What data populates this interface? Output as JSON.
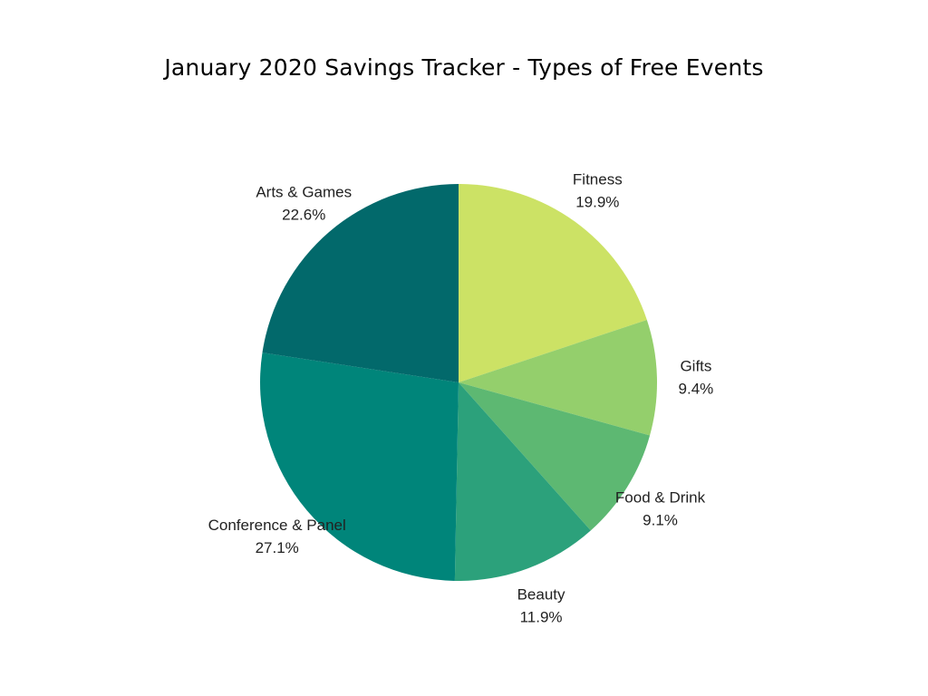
{
  "chart_data": {
    "type": "pie",
    "title": "January 2020 Savings Tracker - Types of Free Events",
    "slices": [
      {
        "label": "Fitness",
        "value": 19.9,
        "display": "19.9%",
        "color": "#cce265"
      },
      {
        "label": "Gifts",
        "value": 9.4,
        "display": "9.4%",
        "color": "#94cf6c"
      },
      {
        "label": "Food & Drink",
        "value": 9.1,
        "display": "9.1%",
        "color": "#5db872"
      },
      {
        "label": "Beauty",
        "value": 11.9,
        "display": "11.9%",
        "color": "#2ca17b"
      },
      {
        "label": "Conference & Panel",
        "value": 27.1,
        "display": "27.1%",
        "color": "#00857a"
      },
      {
        "label": "Arts & Games",
        "value": 22.6,
        "display": "22.6%",
        "color": "#02696b"
      }
    ],
    "legend": "none",
    "start": "12 o'clock",
    "direction": "clockwise"
  }
}
